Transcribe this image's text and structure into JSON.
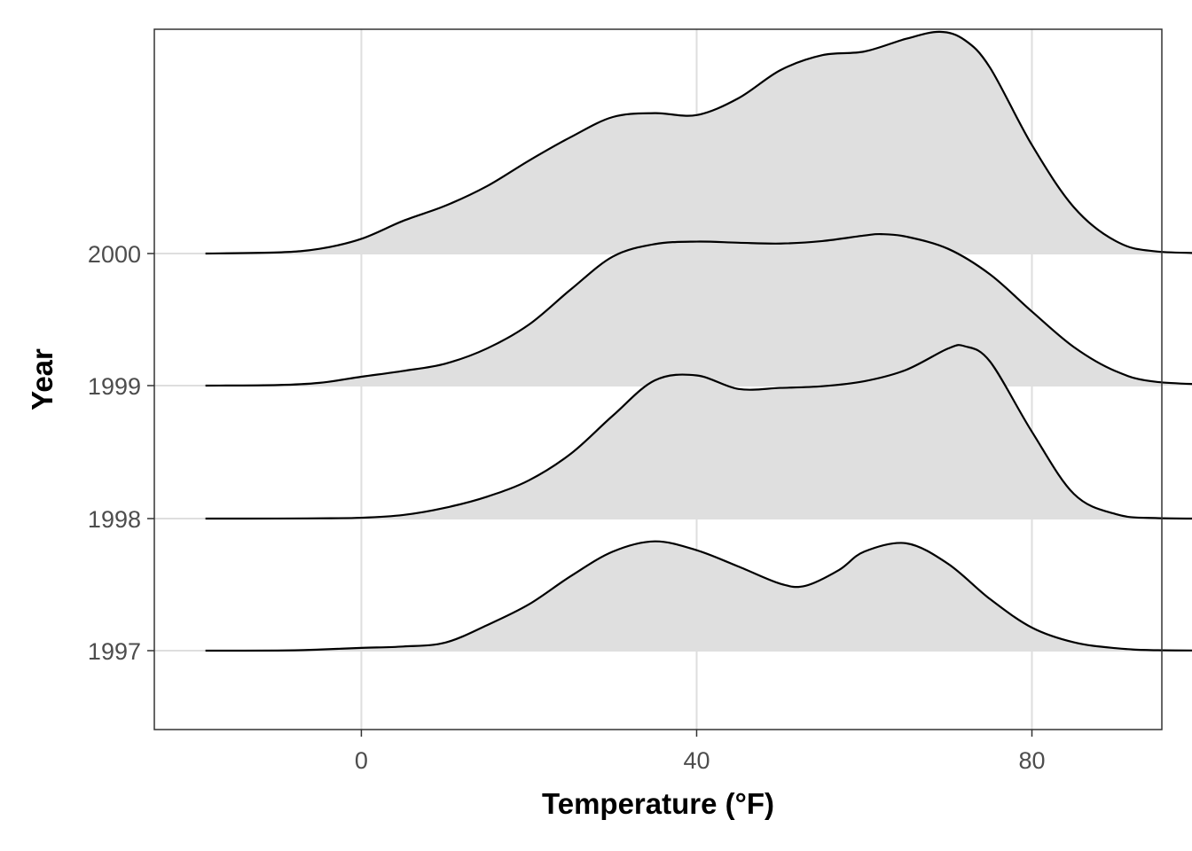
{
  "chart_data": {
    "type": "area",
    "subtype": "ridgeline",
    "title": "",
    "xlabel": "Temperature (°F)",
    "ylabel": "Year",
    "xlim": [
      -24.7,
      95.5
    ],
    "x_ticks": [
      "0",
      "40",
      "80"
    ],
    "grid": true,
    "fill_color": "#dfdfdf",
    "line_color": "#000000",
    "categories": [
      "1997",
      "1998",
      "1999",
      "2000"
    ],
    "series": [
      {
        "name": "1997",
        "x": [
          -18.6,
          -10,
          -5,
          0,
          5,
          10,
          15,
          20,
          25,
          30,
          35,
          40,
          45,
          50,
          53,
          57,
          60,
          65,
          70,
          75,
          80,
          85,
          90,
          95,
          106
        ],
        "density": [
          0,
          0.004,
          0.04,
          0.1,
          0.15,
          0.29,
          0.92,
          1.67,
          2.69,
          3.57,
          3.94,
          3.62,
          3.03,
          2.41,
          2.34,
          2.91,
          3.57,
          3.87,
          3.13,
          1.86,
          0.83,
          0.3,
          0.09,
          0.016,
          0
        ]
      },
      {
        "name": "1998",
        "x": [
          -18.6,
          -10,
          -5,
          0,
          5,
          10,
          15,
          20,
          25,
          30,
          35,
          40,
          45,
          50,
          55,
          60,
          65,
          70,
          72,
          75,
          80,
          85,
          90,
          95,
          106
        ],
        "density": [
          0,
          0.002,
          0.01,
          0.03,
          0.13,
          0.39,
          0.79,
          1.38,
          2.34,
          3.71,
          4.98,
          5.16,
          4.67,
          4.71,
          4.77,
          4.95,
          5.36,
          6.13,
          6.21,
          5.66,
          3.13,
          0.89,
          0.16,
          0.016,
          0
        ]
      },
      {
        "name": "1999",
        "x": [
          -18.6,
          -10,
          -5,
          0,
          5,
          10,
          15,
          20,
          25,
          30,
          35,
          40,
          45,
          50,
          55,
          60,
          62,
          65,
          70,
          75,
          80,
          85,
          90,
          95,
          106
        ],
        "density": [
          0,
          0.02,
          0.1,
          0.32,
          0.53,
          0.79,
          1.34,
          2.2,
          3.47,
          4.65,
          5.1,
          5.19,
          5.15,
          5.12,
          5.21,
          5.41,
          5.46,
          5.37,
          4.93,
          4.01,
          2.67,
          1.39,
          0.52,
          0.13,
          0
        ]
      },
      {
        "name": "2000",
        "x": [
          -18.6,
          -10,
          -5,
          0,
          5,
          10,
          15,
          20,
          25,
          30,
          35,
          40,
          45,
          50,
          55,
          60,
          65,
          69,
          72,
          75,
          80,
          85,
          90,
          95,
          106
        ],
        "density": [
          0,
          0.04,
          0.17,
          0.53,
          1.18,
          1.72,
          2.43,
          3.35,
          4.2,
          4.92,
          5.06,
          4.99,
          5.6,
          6.61,
          7.15,
          7.28,
          7.74,
          7.99,
          7.69,
          6.7,
          3.91,
          1.67,
          0.45,
          0.07,
          0
        ]
      }
    ]
  }
}
